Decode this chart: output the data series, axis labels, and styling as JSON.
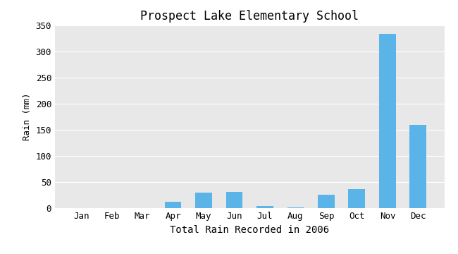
{
  "title": "Prospect Lake Elementary School",
  "xlabel": "Total Rain Recorded in 2006",
  "ylabel": "Rain (mm)",
  "categories": [
    "Jan",
    "Feb",
    "Mar",
    "Apr",
    "May",
    "Jun",
    "Jul",
    "Aug",
    "Sep",
    "Oct",
    "Nov",
    "Dec"
  ],
  "values": [
    0,
    0,
    0,
    12,
    30,
    32,
    4,
    2,
    26,
    37,
    334,
    160
  ],
  "bar_color": "#5ab4e8",
  "ylim": [
    0,
    350
  ],
  "yticks": [
    0,
    50,
    100,
    150,
    200,
    250,
    300,
    350
  ],
  "background_color": "#e8e8e8",
  "title_fontsize": 12,
  "xlabel_fontsize": 10,
  "ylabel_fontsize": 9,
  "tick_fontsize": 9
}
